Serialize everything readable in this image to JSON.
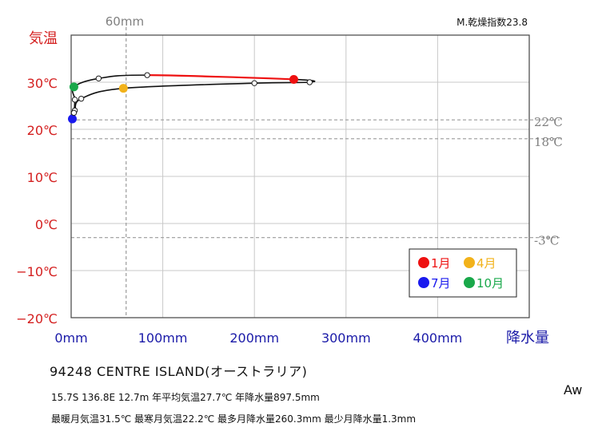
{
  "chart_data": {
    "type": "line",
    "y_axis_title": "気温",
    "x_axis_title": "降水量",
    "x_ticks": [
      "0mm",
      "100mm",
      "200mm",
      "300mm",
      "400mm"
    ],
    "x_tick_values": [
      0,
      100,
      200,
      300,
      400
    ],
    "y_ticks": [
      "30℃",
      "20℃",
      "10℃",
      "0℃",
      "−10℃",
      "−20℃"
    ],
    "y_tick_values": [
      30,
      20,
      10,
      0,
      -10,
      -20
    ],
    "xlim": [
      0,
      500
    ],
    "ylim": [
      -20,
      40
    ],
    "dryness_index_label": "M.乾燥指数23.8",
    "reference_lines": {
      "vertical": [
        {
          "value": 60,
          "label": "60mm"
        }
      ],
      "horizontal": [
        {
          "value": 22,
          "label": "22℃"
        },
        {
          "value": 18,
          "label": "18℃"
        },
        {
          "value": -3,
          "label": "-3℃"
        }
      ]
    },
    "series": [
      {
        "months": [
          1,
          2,
          3,
          4,
          5,
          6,
          7,
          8,
          9,
          10,
          11,
          12
        ],
        "precipitation": [
          243,
          260.3,
          200,
          57,
          11,
          4,
          1.3,
          3,
          4,
          3,
          30,
          83
        ],
        "temperature": [
          30.6,
          30.0,
          29.8,
          28.7,
          26.5,
          24.0,
          22.2,
          23.5,
          26.3,
          29.0,
          30.8,
          31.5
        ]
      }
    ],
    "highlighted": [
      {
        "label": "1月",
        "month": 1,
        "color": "#ee1111"
      },
      {
        "label": "4月",
        "month": 4,
        "color": "#f2b21a"
      },
      {
        "label": "7月",
        "month": 7,
        "color": "#1a1aee"
      },
      {
        "label": "10月",
        "month": 10,
        "color": "#19a84a"
      }
    ],
    "legend_position": "bottom-right",
    "grid": true
  },
  "station": {
    "title": "94248  CENTRE ISLAND(オーストラリア)",
    "info_line1": "15.7S  136.8E 12.7m  年平均気温27.7℃ 年降水量897.5mm",
    "info_line2": "最暖月気温31.5℃ 最寒月気温22.2℃ 最多月降水量260.3mm 最少月降水量1.3mm",
    "climate_class": "Aw"
  },
  "colors": {
    "axis_label_red": "#d42020",
    "axis_label_blue": "#1a1aa8",
    "reference_gray": "#808080",
    "jan_segment": "#ee1111"
  }
}
